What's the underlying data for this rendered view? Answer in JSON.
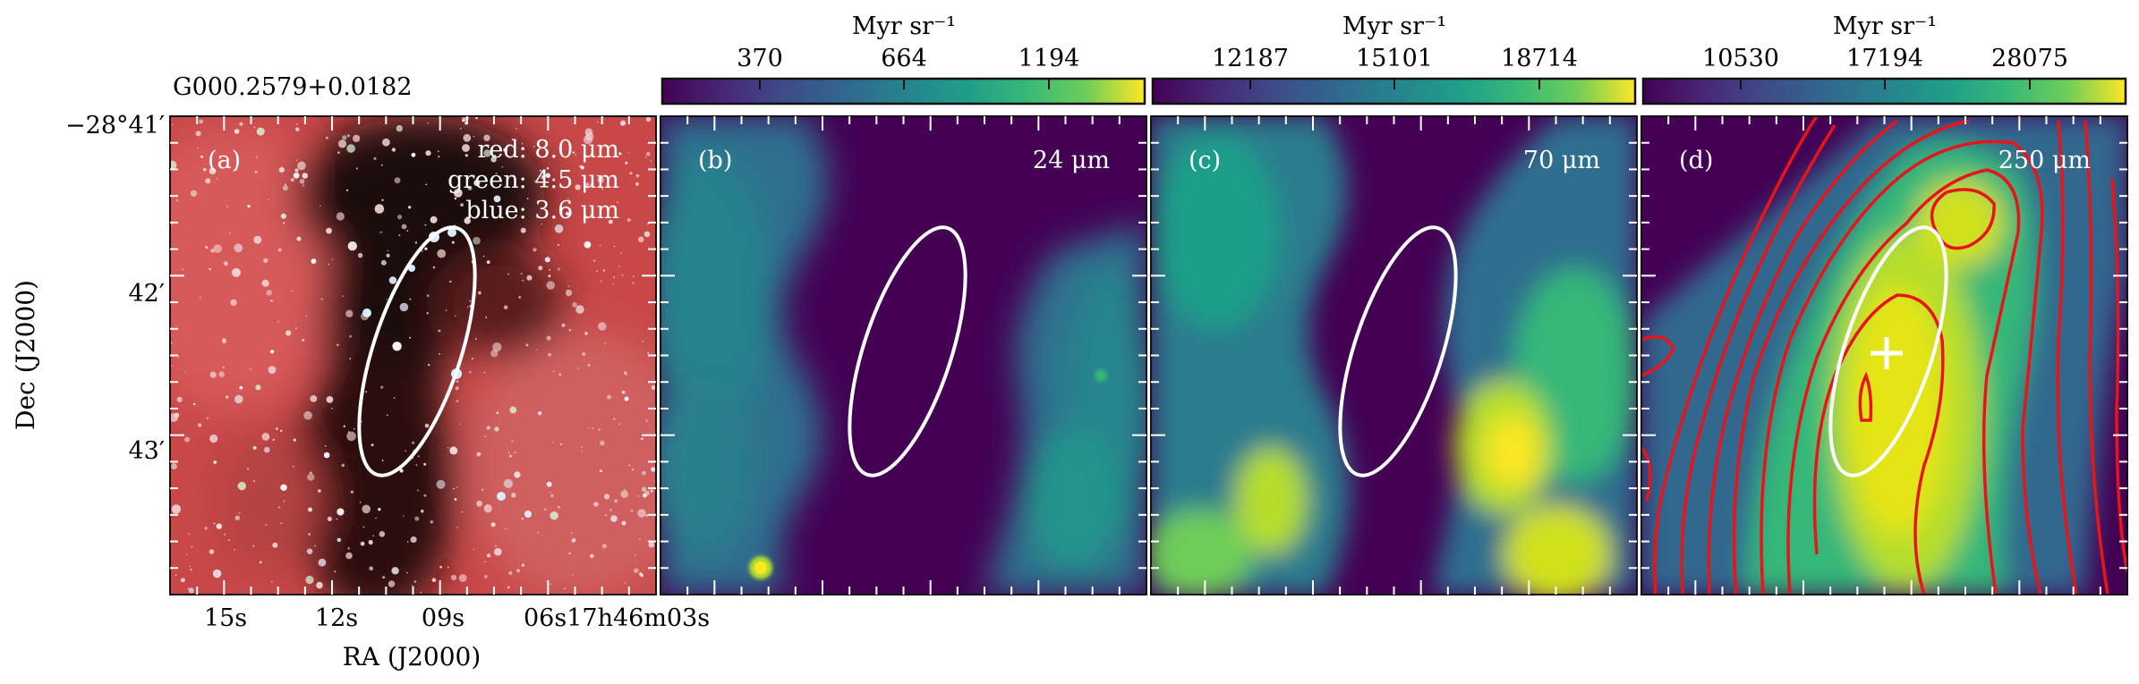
{
  "figure": {
    "source_name": "G000.2579+0.0182",
    "xlabel": "RA (J2000)",
    "ylabel": "Dec (J2000)",
    "x_ticks": [
      "15s",
      "12s",
      "09s",
      "06s17h46m03s"
    ],
    "y_ticks": [
      "−28°41′",
      "42′",
      "43′"
    ]
  },
  "panels": [
    {
      "id": "a",
      "tag": "(a)",
      "legend": [
        "red: 8.0 μm",
        "green: 4.5 μm",
        "blue: 3.6 μm"
      ]
    },
    {
      "id": "b",
      "tag": "(b)",
      "band": "24 μm",
      "colorbar": {
        "unit": "Myr sr⁻¹",
        "ticks": [
          "370",
          "664",
          "1194"
        ]
      }
    },
    {
      "id": "c",
      "tag": "(c)",
      "band": "70 μm",
      "colorbar": {
        "unit": "Myr sr⁻¹",
        "ticks": [
          "12187",
          "15101",
          "18714"
        ]
      }
    },
    {
      "id": "d",
      "tag": "(d)",
      "band": "250 μm",
      "colorbar": {
        "unit": "Myr sr⁻¹",
        "ticks": [
          "10530",
          "17194",
          "28075"
        ]
      }
    }
  ],
  "colors": {
    "ellipse": "#ffffff",
    "contour": "#e8141a",
    "cmap_low": "#440154",
    "cmap_mid": "#21908d",
    "cmap_high": "#fde725"
  }
}
